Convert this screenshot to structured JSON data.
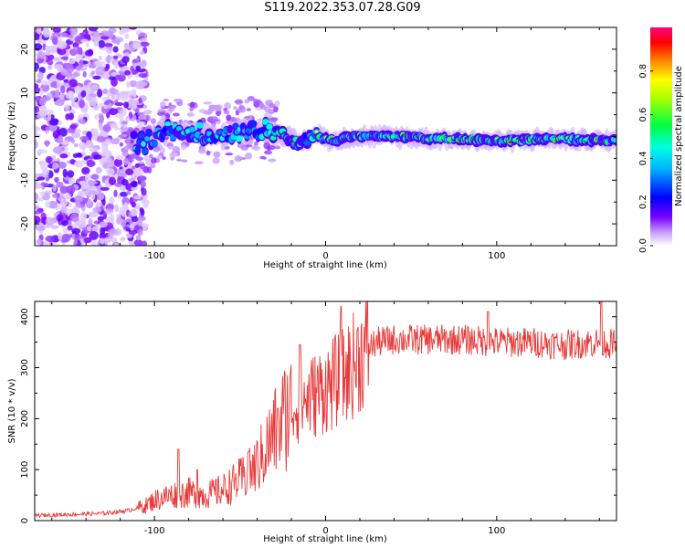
{
  "title": "S119.2022.353.07.28.G09",
  "chart_data": [
    {
      "type": "heatmap",
      "xlabel": "Height of straight line (km)",
      "ylabel": "Frequency (Hz)",
      "xlim": [
        -170,
        170
      ],
      "ylim": [
        -25,
        25
      ],
      "xticks": [
        -100,
        0,
        100
      ],
      "xtick_labels": [
        "-100",
        "0",
        "100"
      ],
      "yticks": [
        -20,
        -10,
        0,
        10,
        20
      ],
      "ytick_labels": [
        "-20",
        "-10",
        "0",
        "10",
        "20"
      ],
      "colorbar": {
        "label": "Normalized spectral amplitude",
        "range": [
          0,
          1
        ],
        "ticks": [
          0.0,
          0.2,
          0.4,
          0.6,
          0.8
        ],
        "tick_labels": [
          "0.0",
          "0.2",
          "0.4",
          "0.6",
          "0.8"
        ],
        "colormap": [
          "#ffffff",
          "#c8a0ff",
          "#6600ff",
          "#0000ff",
          "#00e5ff",
          "#00ff40",
          "#ffff00",
          "#ff2020",
          "#ff0080"
        ]
      },
      "ridge": [
        {
          "x": -105,
          "f": -1.5
        },
        {
          "x": -95,
          "f": 2.0
        },
        {
          "x": -85,
          "f": 1.5
        },
        {
          "x": -75,
          "f": 1.0
        },
        {
          "x": -65,
          "f": 0.5
        },
        {
          "x": -55,
          "f": 1.0
        },
        {
          "x": -45,
          "f": 2.0
        },
        {
          "x": -35,
          "f": 1.5
        },
        {
          "x": -25,
          "f": 0.5
        },
        {
          "x": -15,
          "f": -1.5
        },
        {
          "x": -5,
          "f": 0.5
        },
        {
          "x": 5,
          "f": -1.0
        },
        {
          "x": 15,
          "f": 0.0
        },
        {
          "x": 40,
          "f": 0.0
        },
        {
          "x": 70,
          "f": -0.5
        },
        {
          "x": 100,
          "f": -1.0
        },
        {
          "x": 130,
          "f": -0.5
        },
        {
          "x": 170,
          "f": -1.0
        }
      ]
    },
    {
      "type": "line",
      "xlabel": "Height of straight line (km)",
      "ylabel": "SNR (10 * v/v)",
      "xlim": [
        -170,
        170
      ],
      "ylim": [
        0,
        430
      ],
      "xticks": [
        -100,
        0,
        100
      ],
      "xtick_labels": [
        "-100",
        "0",
        "100"
      ],
      "yticks": [
        0,
        100,
        200,
        300,
        400
      ],
      "ytick_labels": [
        "0",
        "100",
        "200",
        "300",
        "400"
      ],
      "color": "#e83a3a",
      "series": [
        {
          "x": [
            -170,
            -150,
            -130,
            -115,
            -105,
            -100,
            -90,
            -80,
            -70,
            -60,
            -50,
            -45,
            -40,
            -35,
            -30,
            -25,
            -20,
            -15,
            -10,
            -5,
            0,
            5,
            10,
            15,
            20,
            25,
            30,
            40,
            60,
            80,
            100,
            120,
            140,
            160,
            170
          ],
          "y": [
            10,
            12,
            14,
            20,
            30,
            40,
            50,
            55,
            50,
            60,
            80,
            90,
            110,
            140,
            170,
            200,
            220,
            230,
            240,
            250,
            260,
            270,
            280,
            300,
            320,
            340,
            350,
            355,
            355,
            355,
            350,
            350,
            345,
            350,
            345
          ],
          "peaks": [
            {
              "x": -86,
              "y": 140
            },
            {
              "x": -75,
              "y": 100
            },
            {
              "x": -45,
              "y": 135
            },
            {
              "x": -28,
              "y": 220
            },
            {
              "x": -15,
              "y": 345
            },
            {
              "x": 9,
              "y": 420
            },
            {
              "x": 95,
              "y": 410
            },
            {
              "x": 161,
              "y": 430
            }
          ]
        }
      ]
    }
  ]
}
